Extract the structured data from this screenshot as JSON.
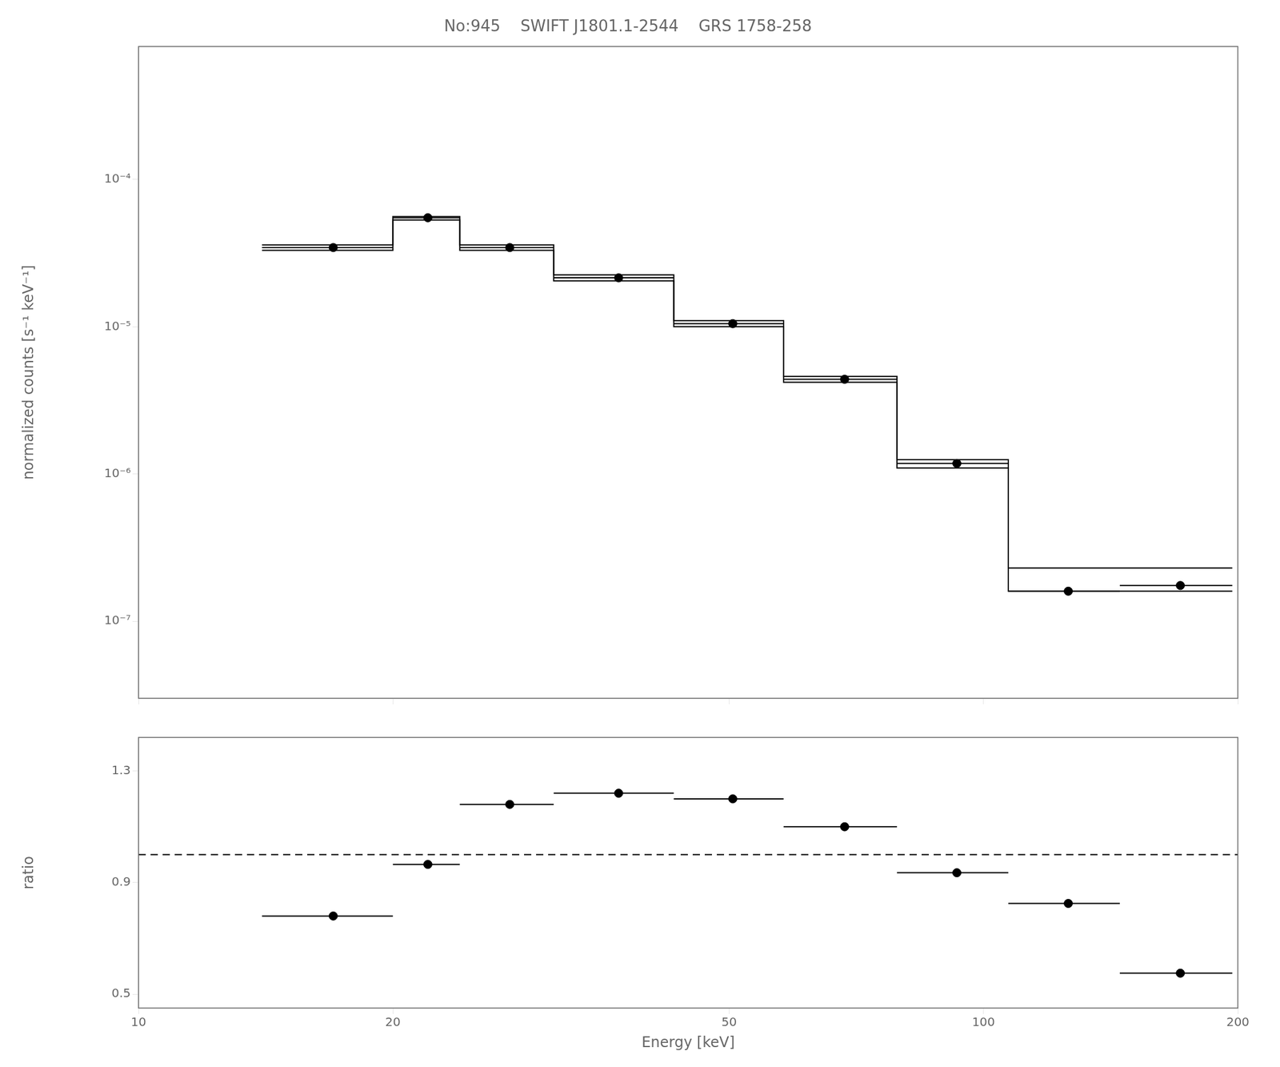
{
  "chart_data": [
    {
      "type": "scatter",
      "title": "No:945    SWIFT J1801.1-2544    GRS 1758-258",
      "ylabel": "normalized counts [s⁻¹ keV⁻¹]",
      "log": true,
      "xlim": [
        10,
        200
      ],
      "ylim": [
        3e-08,
        0.0008
      ],
      "xticks": [
        10,
        20,
        50,
        100,
        200
      ],
      "yticks": [
        {
          "value": 1e-07,
          "label": "10⁻⁷"
        },
        {
          "value": 1e-06,
          "label": "10⁻⁶"
        },
        {
          "value": 1e-05,
          "label": "10⁻⁵"
        },
        {
          "value": 0.0001,
          "label": "10⁻⁴"
        }
      ],
      "tick_labels": "y",
      "grid": false,
      "series": [
        {
          "type": "step",
          "color": "#000000",
          "bins": [
            14.0,
            20.0,
            24.0,
            31.0,
            43.0,
            58.0,
            79.0,
            107.0,
            145.0,
            197.0
          ],
          "values": [
            3.6e-05,
            5.6e-05,
            3.6e-05,
            2.25e-05,
            1.1e-05,
            4.6e-06,
            1.25e-06,
            2.3e-07,
            2.3e-07
          ]
        },
        {
          "type": "step",
          "color": "#000000",
          "bins": [
            14.0,
            20.0,
            24.0,
            31.0,
            43.0,
            58.0,
            79.0,
            107.0,
            145.0,
            197.0
          ],
          "values": [
            3.3e-05,
            5.3e-05,
            3.3e-05,
            2.05e-05,
            1e-05,
            4.2e-06,
            1.1e-06,
            1.6e-07,
            1.6e-07
          ]
        },
        {
          "type": "scatter",
          "color": "#000000",
          "marker": "circle",
          "x": [
            17.0,
            22.0,
            27.5,
            37.0,
            50.5,
            68.5,
            93.0,
            126.0,
            171.0
          ],
          "values": [
            3.45e-05,
            5.5e-05,
            3.45e-05,
            2.15e-05,
            1.05e-05,
            4.4e-06,
            1.18e-06,
            1.6e-07,
            1.75e-07
          ],
          "xerr_lo": [
            3.0,
            2.0,
            3.5,
            6.0,
            7.5,
            10.5,
            14.0,
            19.0,
            26.0
          ],
          "xerr_hi": [
            3.0,
            2.0,
            3.5,
            6.0,
            7.5,
            10.5,
            14.0,
            19.0,
            26.0
          ]
        }
      ]
    },
    {
      "type": "scatter",
      "xlabel": "Energy [keV]",
      "ylabel": "ratio",
      "log": "x",
      "xlim": [
        10,
        200
      ],
      "ylim": [
        0.45,
        1.42
      ],
      "xticks": [
        10,
        20,
        50,
        100,
        200
      ],
      "yticks": [
        0.5,
        0.9,
        1.3
      ],
      "grid": false,
      "series": [
        {
          "type": "scatter",
          "color": "#000000",
          "marker": "circle",
          "x": [
            17.0,
            22.0,
            27.5,
            37.0,
            50.5,
            68.5,
            93.0,
            126.0,
            171.0
          ],
          "values": [
            0.78,
            0.965,
            1.18,
            1.22,
            1.2,
            1.1,
            0.935,
            0.825,
            0.575
          ],
          "xerr_lo": [
            3.0,
            2.0,
            3.5,
            6.0,
            7.5,
            10.5,
            14.0,
            19.0,
            26.0
          ],
          "xerr_hi": [
            3.0,
            2.0,
            3.5,
            6.0,
            7.5,
            10.5,
            14.0,
            19.0,
            26.0
          ]
        },
        {
          "type": "hline",
          "color": "#000000",
          "line_style": "dashed",
          "values": [
            1.0
          ]
        }
      ]
    }
  ]
}
